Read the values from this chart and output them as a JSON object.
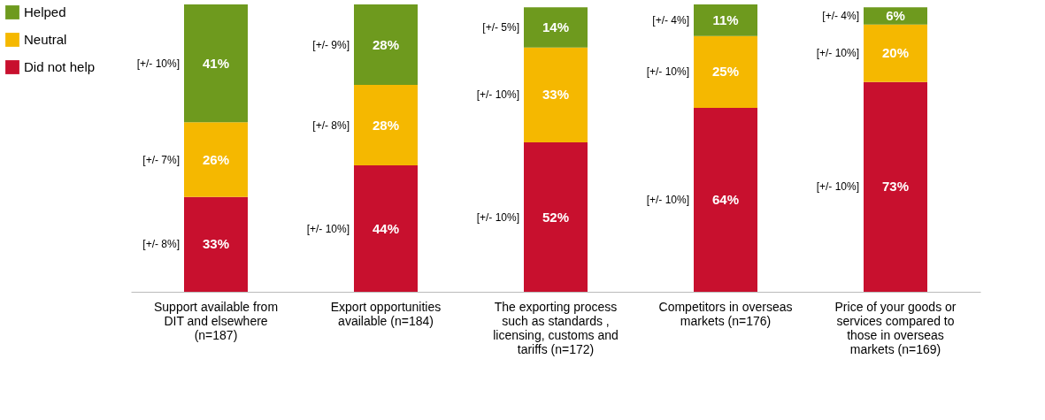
{
  "chart_data": {
    "type": "bar",
    "stacked": true,
    "legend": "left",
    "categories": [
      "Support available from DIT and elsewhere (n=187)",
      "Export opportunities available  (n=184)",
      "The exporting process such as standards , licensing, customs and tariffs (n=172)",
      "Competitors in overseas markets (n=176)",
      "Price of your goods or services compared to those in overseas markets (n=169)"
    ],
    "series": [
      {
        "name": "Did not help",
        "color": "#c8102e",
        "values": [
          33,
          44,
          52,
          64,
          73
        ],
        "value_labels": [
          "33%",
          "44%",
          "52%",
          "64%",
          "73%"
        ]
      },
      {
        "name": "Neutral",
        "color": "#f5b800",
        "values": [
          26,
          28,
          33,
          25,
          20
        ],
        "value_labels": [
          "26%",
          "28%",
          "33%",
          "25%",
          "20%"
        ]
      },
      {
        "name": "Helped",
        "color": "#6e9a1e",
        "values": [
          41,
          28,
          14,
          11,
          6
        ],
        "value_labels": [
          "41%",
          "28%",
          "14%",
          "11%",
          "6%"
        ]
      }
    ],
    "annotations": [
      "[+/- 8%]",
      "[+/- 10%]",
      "[+/- 10%]",
      "[+/- 10%]",
      "[+/- 10%]",
      "[+/- 7%]",
      "[+/- 8%]",
      "[+/- 10%]",
      "[+/- 10%]",
      "[+/- 10%]",
      "[+/- 10%]",
      "[+/- 9%]",
      "[+/- 5%]",
      "[+/- 4%]",
      "[+/- 4%]"
    ]
  }
}
